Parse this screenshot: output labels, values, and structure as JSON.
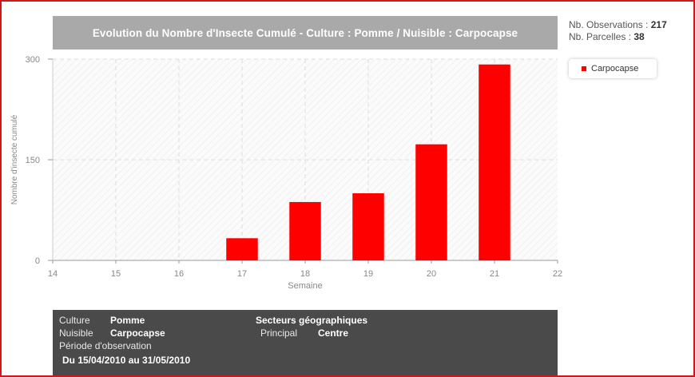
{
  "header": {
    "title": "Evolution du Nombre d'Insecte Cumulé - Culture : Pomme / Nuisible : Carpocapse"
  },
  "stats": {
    "observations_label": "Nb. Observations :",
    "observations_value": "217",
    "parcelles_label": "Nb. Parcelles :",
    "parcelles_value": "38"
  },
  "colors": {
    "series": "#ff0000",
    "title_bar": "#a9a9a9",
    "info_bar": "#4a4a4a",
    "frame_border": "#cc1a1a"
  },
  "chart_data": {
    "type": "bar",
    "title": "Evolution du Nombre d'Insecte Cumulé - Culture : Pomme / Nuisible : Carpocapse",
    "xlabel": "Semaine",
    "ylabel": "Nombre d'insecte cumulé",
    "xlim": [
      14,
      22
    ],
    "ylim": [
      0,
      300
    ],
    "x_ticks": [
      14,
      15,
      16,
      17,
      18,
      19,
      20,
      21,
      22
    ],
    "y_ticks": [
      0,
      150,
      300
    ],
    "grid": true,
    "legend_position": "top-right",
    "series": [
      {
        "name": "Carpocapse",
        "x": [
          17,
          18,
          19,
          20,
          21
        ],
        "values": [
          33,
          87,
          100,
          173,
          292
        ]
      }
    ]
  },
  "info": {
    "culture_label": "Culture",
    "culture_value": "Pomme",
    "nuisible_label": "Nuisible",
    "nuisible_value": "Carpocapse",
    "periode_label": "Période d'observation",
    "periode_value": "Du 15/04/2010 au 31/05/2010",
    "secteurs_label": "Secteurs géographiques",
    "principal_label": "Principal",
    "principal_value": "Centre"
  }
}
